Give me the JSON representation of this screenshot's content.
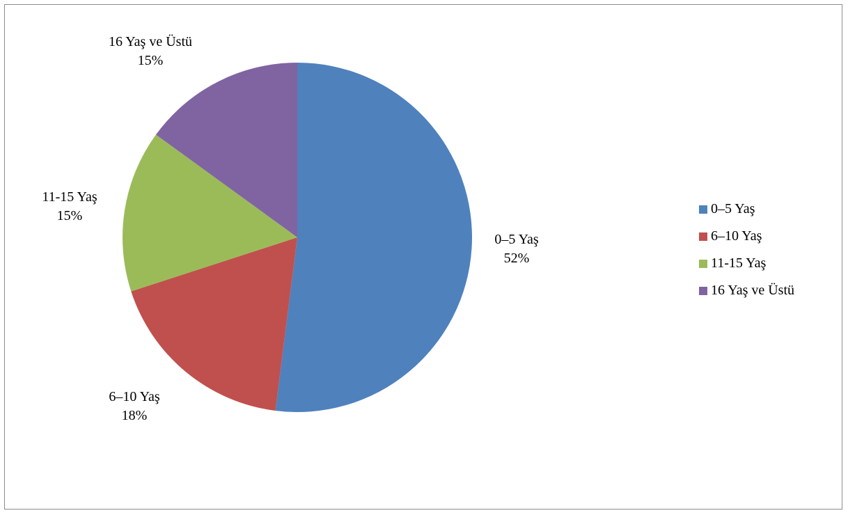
{
  "chart_data": {
    "type": "pie",
    "categories": [
      "0–5 Yaş",
      "6–10 Yaş",
      "11-15 Yaş",
      "16 Yaş ve Üstü"
    ],
    "values": [
      52,
      18,
      15,
      15
    ],
    "percent_labels": [
      "52%",
      "18%",
      "15%",
      "15%"
    ],
    "colors": [
      "#4F81BD",
      "#C0504D",
      "#9BBB59",
      "#8064A2"
    ],
    "legend": {
      "position": "right",
      "entries": [
        "0–5 Yaş",
        "6–10 Yaş",
        "11-15 Yaş",
        "16 Yaş ve Üstü"
      ]
    },
    "start_angle_deg": 0,
    "direction": "clockwise"
  }
}
